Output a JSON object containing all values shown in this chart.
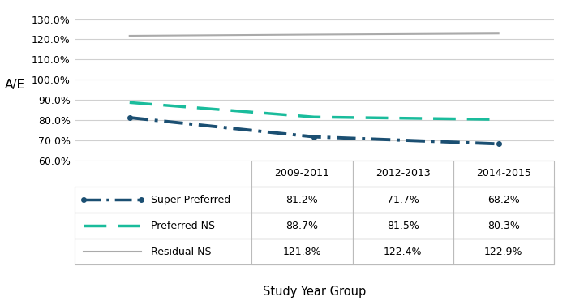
{
  "x_positions": [
    0,
    1,
    2
  ],
  "x_labels": [
    "2009-2011",
    "2012-2013",
    "2014-2015"
  ],
  "series": [
    {
      "name": "Super Preferred",
      "values": [
        81.2,
        71.7,
        68.2
      ],
      "color": "#1b4f72",
      "linewidth": 2.8,
      "dash": [
        6,
        2,
        1,
        2
      ],
      "marker": "o",
      "markersize": 4
    },
    {
      "name": "Preferred NS",
      "values": [
        88.7,
        81.5,
        80.3
      ],
      "color": "#1abc9c",
      "linewidth": 2.5,
      "dash": [
        8,
        4
      ],
      "marker": null,
      "markersize": 0
    },
    {
      "name": "Residual NS",
      "values": [
        121.8,
        122.4,
        122.9
      ],
      "color": "#aaaaaa",
      "linewidth": 1.5,
      "dash": [],
      "marker": null,
      "markersize": 0
    }
  ],
  "ylabel": "A/E",
  "xlabel": "Study Year Group",
  "ylim": [
    60.0,
    135.0
  ],
  "yticks": [
    60.0,
    70.0,
    80.0,
    90.0,
    100.0,
    110.0,
    120.0,
    130.0
  ],
  "ytick_labels": [
    "60.0%",
    "70.0%",
    "80.0%",
    "90.0%",
    "100.0%",
    "110.0%",
    "120.0%",
    "130.0%"
  ],
  "background_color": "#ffffff",
  "grid_color": "#d0d0d0",
  "table_header": [
    "2009-2011",
    "2012-2013",
    "2014-2015"
  ],
  "table_values": [
    [
      "81.2%",
      "71.7%",
      "68.2%"
    ],
    [
      "88.7%",
      "81.5%",
      "80.3%"
    ],
    [
      "121.8%",
      "122.4%",
      "122.9%"
    ]
  ],
  "legend_colors": [
    "#1b4f72",
    "#1abc9c",
    "#aaaaaa"
  ],
  "legend_names": [
    "Super Preferred",
    "Preferred NS",
    "Residual NS"
  ],
  "legend_dashes": [
    [
      6,
      2,
      1,
      2
    ],
    [
      8,
      4
    ],
    []
  ],
  "legend_markers": [
    "o",
    null,
    null
  ]
}
